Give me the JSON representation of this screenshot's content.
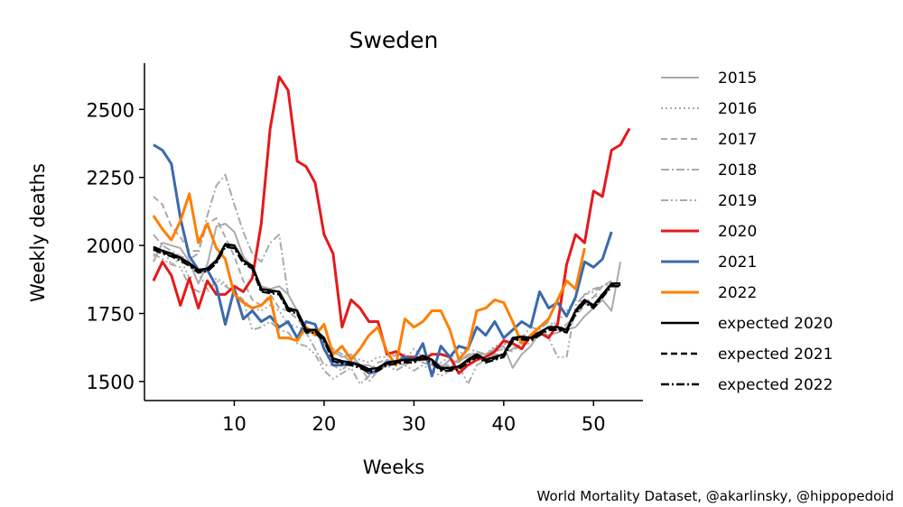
{
  "chart_data": {
    "type": "line",
    "title": "Sweden",
    "xlabel": "Weeks",
    "ylabel": "Weekly deaths",
    "xlim": [
      0,
      55.5
    ],
    "ylim": [
      1430,
      2670
    ],
    "xticks": [
      10,
      20,
      30,
      40,
      50
    ],
    "yticks": [
      1500,
      1750,
      2000,
      2250,
      2500
    ],
    "grid": false,
    "legend_position": "outside-right",
    "credit": "World Mortality Dataset, @akarlinsky, @hippopedoid",
    "series": [
      {
        "name": "2015",
        "color": "#aaaaaa",
        "dash": "solid",
        "width": 2,
        "values": [
          1940,
          2010,
          2000,
          1990,
          1940,
          1860,
          1930,
          2070,
          2080,
          2050,
          1960,
          1920,
          1850,
          1840,
          1850,
          1820,
          1760,
          1700,
          1680,
          1640,
          1610,
          1590,
          1600,
          1560,
          1560,
          1540,
          1580,
          1570,
          1560,
          1580,
          1590,
          1560,
          1550,
          1580,
          1570,
          1600,
          1600,
          1600,
          1620,
          1630,
          1550,
          1600,
          1630,
          1680,
          1670,
          1680,
          1690,
          1700,
          1740,
          1770,
          1800,
          1760,
          1940
        ]
      },
      {
        "name": "2016",
        "color": "#aaaaaa",
        "dash": "dotted",
        "width": 2,
        "values": [
          1960,
          1990,
          1930,
          1950,
          1880,
          1900,
          1840,
          1880,
          1860,
          1820,
          1800,
          1770,
          1760,
          1780,
          1760,
          1710,
          1700,
          1690,
          1680,
          1640,
          1620,
          1600,
          1590,
          1580,
          1570,
          1590,
          1590,
          1600,
          1580,
          1620,
          1590,
          1580,
          1570,
          1590,
          1600,
          1620,
          1610,
          1600,
          1630,
          1640,
          1620,
          1650,
          1660,
          1680,
          1700,
          1720,
          1760,
          1800,
          1790,
          1810,
          1820,
          1840
        ]
      },
      {
        "name": "2017",
        "color": "#aaaaaa",
        "dash": "dashed",
        "width": 2,
        "values": [
          2180,
          2150,
          2070,
          2030,
          1980,
          1980,
          2080,
          2100,
          2030,
          1960,
          1870,
          1800,
          1780,
          1820,
          1770,
          1760,
          1730,
          1690,
          1680,
          1650,
          1620,
          1600,
          1570,
          1550,
          1540,
          1570,
          1580,
          1570,
          1580,
          1590,
          1590,
          1580,
          1560,
          1560,
          1580,
          1590,
          1590,
          1580,
          1610,
          1620,
          1610,
          1640,
          1640,
          1680,
          1700,
          1690,
          1710,
          1740,
          1780,
          1810,
          1850,
          1870
        ]
      },
      {
        "name": "2018",
        "color": "#aaaaaa",
        "dash": "dashdot",
        "width": 2,
        "values": [
          2040,
          2000,
          1980,
          1960,
          1950,
          1970,
          2110,
          2220,
          2260,
          2150,
          2050,
          1970,
          1940,
          2010,
          2040,
          1820,
          1760,
          1680,
          1620,
          1560,
          1560,
          1540,
          1580,
          1560,
          1500,
          1540,
          1560,
          1600,
          1600,
          1580,
          1570,
          1560,
          1560,
          1550,
          1580,
          1590,
          1610,
          1600,
          1620,
          1640,
          1650,
          1660,
          1700,
          1690,
          1720,
          1700,
          1700,
          1760,
          1820,
          1830,
          1850,
          1870
        ]
      },
      {
        "name": "2019",
        "color": "#aaaaaa",
        "dash": "dashdotdot",
        "width": 2,
        "values": [
          1970,
          1950,
          1930,
          1920,
          1850,
          1830,
          1830,
          1870,
          1850,
          1830,
          1800,
          1690,
          1700,
          1720,
          1690,
          1680,
          1640,
          1630,
          1600,
          1540,
          1510,
          1530,
          1550,
          1490,
          1520,
          1540,
          1560,
          1540,
          1560,
          1540,
          1560,
          1540,
          1520,
          1540,
          1560,
          1490,
          1560,
          1580,
          1600,
          1600,
          1620,
          1640,
          1660,
          1680,
          1660,
          1590,
          1590,
          1780,
          1820,
          1840,
          1850,
          1860
        ]
      },
      {
        "name": "2020",
        "color": "#e31a1c",
        "dash": "solid",
        "width": 3,
        "values": [
          1870,
          1940,
          1890,
          1780,
          1880,
          1770,
          1870,
          1820,
          1820,
          1850,
          1830,
          1880,
          2080,
          2430,
          2620,
          2570,
          2310,
          2290,
          2230,
          2040,
          1970,
          1700,
          1800,
          1770,
          1720,
          1720,
          1600,
          1610,
          1590,
          1590,
          1580,
          1600,
          1600,
          1590,
          1530,
          1560,
          1580,
          1590,
          1610,
          1650,
          1640,
          1620,
          1670,
          1680,
          1660,
          1710,
          1930,
          2040,
          2010,
          2200,
          2180,
          2350,
          2370,
          2430
        ]
      },
      {
        "name": "2021",
        "color": "#3a6aad",
        "dash": "solid",
        "width": 3,
        "values": [
          2370,
          2350,
          2300,
          2100,
          1960,
          1910,
          1910,
          1850,
          1710,
          1840,
          1730,
          1760,
          1720,
          1740,
          1700,
          1720,
          1660,
          1720,
          1710,
          1620,
          1560,
          1560,
          1570,
          1560,
          1530,
          1540,
          1570,
          1570,
          1590,
          1580,
          1640,
          1520,
          1630,
          1590,
          1630,
          1620,
          1700,
          1670,
          1720,
          1660,
          1690,
          1720,
          1700,
          1830,
          1770,
          1790,
          1740,
          1810,
          1940,
          1920,
          1950,
          2050
        ]
      },
      {
        "name": "2022",
        "color": "#ff7f00",
        "dash": "solid",
        "width": 3,
        "values": [
          2110,
          2060,
          2020,
          2090,
          2190,
          2010,
          2080,
          1990,
          1950,
          1820,
          1790,
          1770,
          1780,
          1810,
          1660,
          1660,
          1650,
          1700,
          1670,
          1710,
          1600,
          1630,
          1580,
          1620,
          1670,
          1700,
          1610,
          1560,
          1730,
          1700,
          1720,
          1760,
          1760,
          1690,
          1580,
          1620,
          1760,
          1770,
          1800,
          1790,
          1720,
          1640,
          1670,
          1700,
          1730,
          1800,
          1870,
          1840,
          1990
        ]
      },
      {
        "name": "expected 2020",
        "color": "#000000",
        "dash": "solid",
        "width": 2.5,
        "values": [
          1995,
          1980,
          1970,
          1955,
          1935,
          1910,
          1915,
          1945,
          2005,
          2000,
          1945,
          1925,
          1840,
          1835,
          1830,
          1770,
          1760,
          1690,
          1690,
          1660,
          1585,
          1575,
          1570,
          1560,
          1545,
          1550,
          1570,
          1575,
          1580,
          1580,
          1595,
          1580,
          1550,
          1550,
          1555,
          1580,
          1600,
          1580,
          1590,
          1600,
          1660,
          1665,
          1660,
          1680,
          1700,
          1700,
          1690,
          1760,
          1800,
          1780,
          1820,
          1860,
          1860
        ]
      },
      {
        "name": "expected 2021",
        "color": "#000000",
        "dash": "dashed",
        "width": 2.5,
        "values": [
          1990,
          1975,
          1965,
          1950,
          1930,
          1905,
          1910,
          1940,
          2000,
          1995,
          1940,
          1920,
          1835,
          1830,
          1825,
          1765,
          1755,
          1685,
          1685,
          1655,
          1580,
          1570,
          1565,
          1555,
          1540,
          1545,
          1565,
          1570,
          1575,
          1575,
          1590,
          1575,
          1545,
          1545,
          1550,
          1575,
          1595,
          1575,
          1585,
          1595,
          1655,
          1660,
          1655,
          1675,
          1695,
          1695,
          1685,
          1755,
          1795,
          1775,
          1815,
          1855,
          1855
        ]
      },
      {
        "name": "expected 2022",
        "color": "#000000",
        "dash": "dashdot",
        "width": 2.5,
        "values": [
          1985,
          1970,
          1960,
          1945,
          1925,
          1900,
          1905,
          1935,
          1995,
          1990,
          1935,
          1915,
          1830,
          1825,
          1820,
          1760,
          1750,
          1680,
          1680,
          1650,
          1575,
          1565,
          1560,
          1550,
          1535,
          1540,
          1560,
          1565,
          1570,
          1570,
          1585,
          1570,
          1540,
          1540,
          1545,
          1570,
          1590,
          1570,
          1580,
          1590,
          1650,
          1655,
          1650,
          1670,
          1690,
          1690,
          1680,
          1750,
          1790,
          1770,
          1810,
          1850,
          1850
        ]
      }
    ]
  }
}
